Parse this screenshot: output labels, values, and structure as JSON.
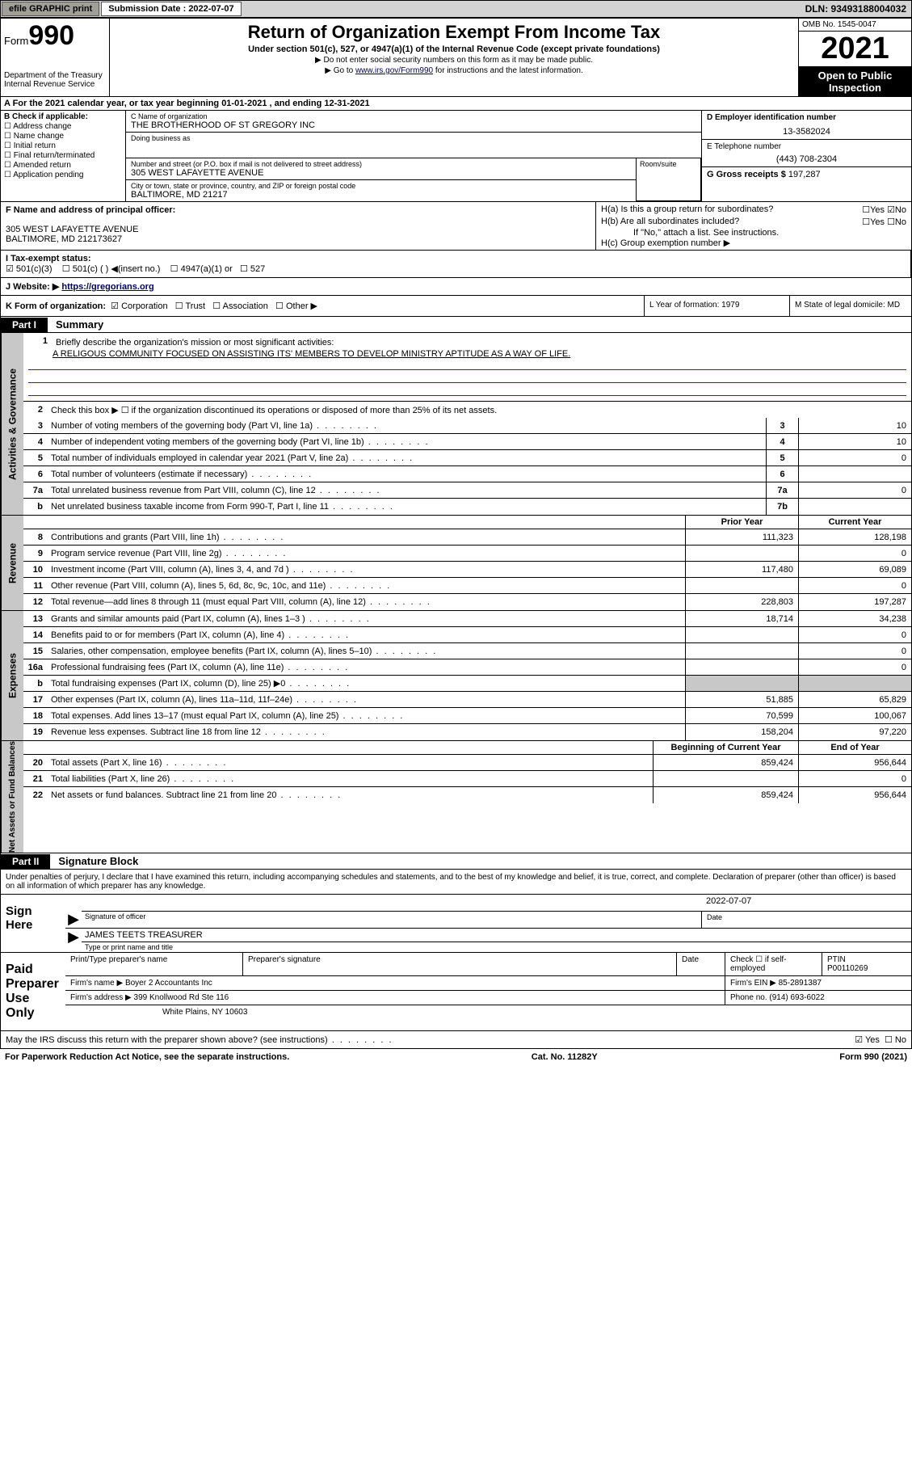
{
  "topbar": {
    "efile_btn": "efile GRAPHIC print",
    "sub_label": "Submission Date : 2022-07-07",
    "dln": "DLN: 93493188004032"
  },
  "header": {
    "form_prefix": "Form",
    "form_num": "990",
    "dept": "Department of the Treasury\nInternal Revenue Service",
    "title": "Return of Organization Exempt From Income Tax",
    "sub1": "Under section 501(c), 527, or 4947(a)(1) of the Internal Revenue Code (except private foundations)",
    "sub2": "▶ Do not enter social security numbers on this form as it may be made public.",
    "sub3_pre": "▶ Go to ",
    "sub3_link": "www.irs.gov/Form990",
    "sub3_post": " for instructions and the latest information.",
    "omb": "OMB No. 1545-0047",
    "year": "2021",
    "open": "Open to Public Inspection"
  },
  "row_a": "A For the 2021 calendar year, or tax year beginning 01-01-2021   , and ending 12-31-2021",
  "col_b": {
    "hdr": "B Check if applicable:",
    "items": [
      "Address change",
      "Name change",
      "Initial return",
      "Final return/terminated",
      "Amended return",
      "Application pending"
    ]
  },
  "org": {
    "name_lbl": "C Name of organization",
    "name": "THE BROTHERHOOD OF ST GREGORY INC",
    "dba_lbl": "Doing business as",
    "addr_lbl": "Number and street (or P.O. box if mail is not delivered to street address)",
    "addr": "305 WEST LAFAYETTE AVENUE",
    "suite_lbl": "Room/suite",
    "city_lbl": "City or town, state or province, country, and ZIP or foreign postal code",
    "city": "BALTIMORE, MD  21217"
  },
  "col_de": {
    "d_lbl": "D Employer identification number",
    "ein": "13-3582024",
    "e_lbl": "E Telephone number",
    "phone": "(443) 708-2304",
    "g_lbl": "G Gross receipts $ ",
    "gross": "197,287"
  },
  "row_f": {
    "lbl": "F  Name and address of principal officer:",
    "addr1": "305 WEST LAFAYETTE AVENUE",
    "addr2": "BALTIMORE, MD  212173627"
  },
  "col_h": {
    "ha": "H(a)  Is this a group return for subordinates?",
    "hb": "H(b)  Are all subordinates included?",
    "hb_note": "If \"No,\" attach a list. See instructions.",
    "hc": "H(c)  Group exemption number ▶"
  },
  "row_i": {
    "lbl": "I    Tax-exempt status:",
    "opts": [
      "501(c)(3)",
      "501(c) (  ) ◀(insert no.)",
      "4947(a)(1) or",
      "527"
    ]
  },
  "row_j": {
    "lbl": "J   Website: ▶ ",
    "url": "https://gregorians.org"
  },
  "row_k": "K Form of organization:",
  "k_opts": [
    "Corporation",
    "Trust",
    "Association",
    "Other ▶"
  ],
  "row_l": "L Year of formation: 1979",
  "row_m": "M State of legal domicile: MD",
  "part1": {
    "hdr": "Part I",
    "title": "Summary",
    "line1_lbl": "Briefly describe the organization's mission or most significant activities:",
    "mission": "A RELIGOUS COMMUNITY FOCUSED ON ASSISTING ITS' MEMBERS TO DEVELOP MINISTRY APTITUDE AS A WAY OF LIFE.",
    "line2": "Check this box ▶ ☐  if the organization discontinued its operations or disposed of more than 25% of its net assets."
  },
  "gov_lines": [
    {
      "n": "3",
      "t": "Number of voting members of the governing body (Part VI, line 1a)",
      "b": "3",
      "v": "10"
    },
    {
      "n": "4",
      "t": "Number of independent voting members of the governing body (Part VI, line 1b)",
      "b": "4",
      "v": "10"
    },
    {
      "n": "5",
      "t": "Total number of individuals employed in calendar year 2021 (Part V, line 2a)",
      "b": "5",
      "v": "0"
    },
    {
      "n": "6",
      "t": "Total number of volunteers (estimate if necessary)",
      "b": "6",
      "v": ""
    },
    {
      "n": "7a",
      "t": "Total unrelated business revenue from Part VIII, column (C), line 12",
      "b": "7a",
      "v": "0"
    },
    {
      "n": "b",
      "t": "Net unrelated business taxable income from Form 990-T, Part I, line 11",
      "b": "7b",
      "v": ""
    }
  ],
  "hdrs": {
    "prior": "Prior Year",
    "current": "Current Year",
    "begin": "Beginning of Current Year",
    "end": "End of Year"
  },
  "rev_lines": [
    {
      "n": "8",
      "t": "Contributions and grants (Part VIII, line 1h)",
      "p": "111,323",
      "c": "128,198"
    },
    {
      "n": "9",
      "t": "Program service revenue (Part VIII, line 2g)",
      "p": "",
      "c": "0"
    },
    {
      "n": "10",
      "t": "Investment income (Part VIII, column (A), lines 3, 4, and 7d )",
      "p": "117,480",
      "c": "69,089"
    },
    {
      "n": "11",
      "t": "Other revenue (Part VIII, column (A), lines 5, 6d, 8c, 9c, 10c, and 11e)",
      "p": "",
      "c": "0"
    },
    {
      "n": "12",
      "t": "Total revenue—add lines 8 through 11 (must equal Part VIII, column (A), line 12)",
      "p": "228,803",
      "c": "197,287"
    }
  ],
  "exp_lines": [
    {
      "n": "13",
      "t": "Grants and similar amounts paid (Part IX, column (A), lines 1–3 )",
      "p": "18,714",
      "c": "34,238"
    },
    {
      "n": "14",
      "t": "Benefits paid to or for members (Part IX, column (A), line 4)",
      "p": "",
      "c": "0"
    },
    {
      "n": "15",
      "t": "Salaries, other compensation, employee benefits (Part IX, column (A), lines 5–10)",
      "p": "",
      "c": "0"
    },
    {
      "n": "16a",
      "t": "Professional fundraising fees (Part IX, column (A), line 11e)",
      "p": "",
      "c": "0"
    },
    {
      "n": "b",
      "t": "Total fundraising expenses (Part IX, column (D), line 25) ▶0",
      "p": "grey",
      "c": "grey"
    },
    {
      "n": "17",
      "t": "Other expenses (Part IX, column (A), lines 11a–11d, 11f–24e)",
      "p": "51,885",
      "c": "65,829"
    },
    {
      "n": "18",
      "t": "Total expenses. Add lines 13–17 (must equal Part IX, column (A), line 25)",
      "p": "70,599",
      "c": "100,067"
    },
    {
      "n": "19",
      "t": "Revenue less expenses. Subtract line 18 from line 12",
      "p": "158,204",
      "c": "97,220"
    }
  ],
  "net_lines": [
    {
      "n": "20",
      "t": "Total assets (Part X, line 16)",
      "p": "859,424",
      "c": "956,644"
    },
    {
      "n": "21",
      "t": "Total liabilities (Part X, line 26)",
      "p": "",
      "c": "0"
    },
    {
      "n": "22",
      "t": "Net assets or fund balances. Subtract line 21 from line 20",
      "p": "859,424",
      "c": "956,644"
    }
  ],
  "part2": {
    "hdr": "Part II",
    "title": "Signature Block",
    "decl": "Under penalties of perjury, I declare that I have examined this return, including accompanying schedules and statements, and to the best of my knowledge and belief, it is true, correct, and complete. Declaration of preparer (other than officer) is based on all information of which preparer has any knowledge."
  },
  "sign": {
    "here": "Sign Here",
    "sig_lbl": "Signature of officer",
    "date_lbl": "Date",
    "date": "2022-07-07",
    "name": "JAMES TEETS  TREASURER",
    "name_lbl": "Type or print name and title"
  },
  "prep": {
    "title": "Paid Preparer Use Only",
    "h1": "Print/Type preparer's name",
    "h2": "Preparer's signature",
    "h3": "Date",
    "h4_pre": "Check ☐  if self-employed",
    "h5": "PTIN",
    "ptin": "P00110269",
    "firm_lbl": "Firm's name     ▶ ",
    "firm": "Boyer 2 Accountants Inc",
    "ein_lbl": "Firm's EIN ▶ ",
    "ein": "85-2891387",
    "addr_lbl": "Firm's address ▶ ",
    "addr1": "399 Knollwood Rd Ste 116",
    "addr2": "White Plains, NY  10603",
    "phone_lbl": "Phone no. ",
    "phone": "(914) 693-6022"
  },
  "footer": {
    "q": "May the IRS discuss this return with the preparer shown above? (see instructions)",
    "pra": "For Paperwork Reduction Act Notice, see the separate instructions.",
    "cat": "Cat. No. 11282Y",
    "form": "Form 990 (2021)"
  },
  "vtabs": {
    "gov": "Activities & Governance",
    "rev": "Revenue",
    "exp": "Expenses",
    "net": "Net Assets or Fund Balances"
  }
}
